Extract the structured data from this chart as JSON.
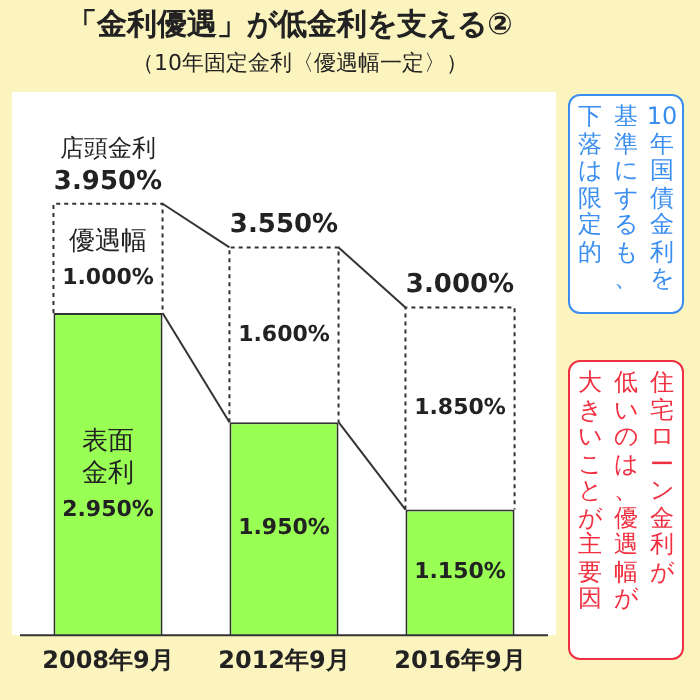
{
  "chart_data": {
    "type": "bar",
    "stacked": true,
    "title": "「金利優遇」が低金利を支える②",
    "subtitle": "（10年固定金利〈優遇幅一定〉）",
    "categories": [
      "2008年9月",
      "2012年9月",
      "2016年9月"
    ],
    "series": [
      {
        "name": "表面金利",
        "color": "#99ff55",
        "values": [
          2.95,
          1.95,
          1.15
        ],
        "value_labels": [
          "2.950%",
          "1.950%",
          "1.150%"
        ]
      },
      {
        "name": "優遇幅",
        "color": "#ffffff",
        "values": [
          1.0,
          1.6,
          1.85
        ],
        "value_labels": [
          "1.000%",
          "1.600%",
          "1.850%"
        ]
      }
    ],
    "totals": [
      "3.950%",
      "3.550%",
      "3.000%"
    ],
    "annotations": [
      {
        "text": "店頭金利",
        "x": "2008年9月",
        "y": 3.95
      },
      "10年国債金利を",
      "基準にするも、",
      "下落は限定的",
      "住宅ローン金利が",
      "低いのは、優遇幅が",
      "大きいことが主要因"
    ],
    "legend": false,
    "grid": false
  }
}
